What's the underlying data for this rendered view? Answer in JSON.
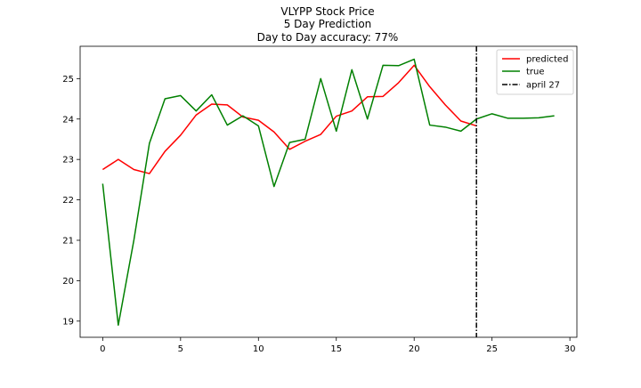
{
  "chart_data": {
    "type": "line",
    "title_lines": [
      "VLYPP Stock Price",
      "5 Day Prediction",
      "Day to Day accuracy: 77%"
    ],
    "xlabel": "",
    "ylabel": "",
    "xlim": [
      -1.45,
      30.45
    ],
    "ylim": [
      18.6,
      25.8
    ],
    "x_ticks": [
      0,
      5,
      10,
      15,
      20,
      25,
      30
    ],
    "y_ticks": [
      19,
      20,
      21,
      22,
      23,
      24,
      25
    ],
    "grid": false,
    "legend_position": "top-right",
    "series": [
      {
        "name": "predicted",
        "color": "#ff0000",
        "style": "solid",
        "x": [
          0,
          1,
          2,
          3,
          4,
          5,
          6,
          7,
          8,
          9,
          10,
          11,
          12,
          13,
          14,
          15,
          16,
          17,
          18,
          19,
          20,
          21,
          22,
          23,
          24
        ],
        "y": [
          22.75,
          23.0,
          22.75,
          22.65,
          23.2,
          23.6,
          24.1,
          24.37,
          24.35,
          24.05,
          23.97,
          23.68,
          23.25,
          23.45,
          23.62,
          24.07,
          24.2,
          24.55,
          24.56,
          24.9,
          25.33,
          24.8,
          24.35,
          23.95,
          23.83
        ]
      },
      {
        "name": "true",
        "color": "#008000",
        "style": "solid",
        "x": [
          0,
          1,
          2,
          3,
          4,
          5,
          6,
          7,
          8,
          9,
          10,
          11,
          12,
          13,
          14,
          15,
          16,
          17,
          18,
          19,
          20,
          21,
          22,
          23,
          24,
          25,
          26,
          27,
          28,
          29
        ],
        "y": [
          22.4,
          18.9,
          21.0,
          23.4,
          24.5,
          24.58,
          24.2,
          24.6,
          23.85,
          24.08,
          23.83,
          22.33,
          23.42,
          23.5,
          25.0,
          23.7,
          25.22,
          24.0,
          25.33,
          25.32,
          25.48,
          23.85,
          23.8,
          23.7,
          24.0,
          24.13,
          24.02,
          24.02,
          24.03,
          24.08
        ]
      }
    ],
    "vertical_line": {
      "name": "april 27",
      "x": 24,
      "color": "#000000",
      "style": "dashdot"
    }
  }
}
